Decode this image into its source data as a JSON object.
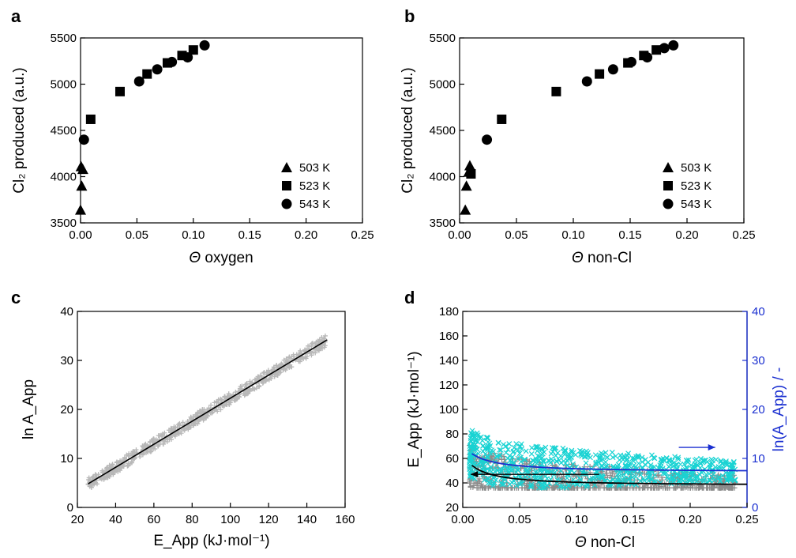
{
  "figure": {
    "background": "#ffffff"
  },
  "chart_data": [
    {
      "panel": "a",
      "type": "scatter",
      "xlabel_symbol": "Θ",
      "xlabel": "oxygen",
      "ylabel": "Cl₂ produced (a.u.)",
      "xlim": [
        0,
        0.25
      ],
      "ylim": [
        3500,
        5500
      ],
      "xticks": [
        "0.00",
        "0.05",
        "0.10",
        "0.15",
        "0.20",
        "0.25"
      ],
      "yticks": [
        "3500",
        "4000",
        "4500",
        "5000",
        "5500"
      ],
      "legend_position": "bottom-right",
      "series": [
        {
          "name": "503 K",
          "marker": "triangle",
          "x": [
            0.0,
            0.001,
            0.002,
            0.0005
          ],
          "y": [
            3640,
            3900,
            4080,
            4110
          ]
        },
        {
          "name": "523 K",
          "marker": "square",
          "x": [
            0.009,
            0.035,
            0.059,
            0.077,
            0.09,
            0.1
          ],
          "y": [
            4620,
            4920,
            5110,
            5230,
            5310,
            5370
          ]
        },
        {
          "name": "543 K",
          "marker": "circle",
          "x": [
            0.003,
            0.052,
            0.068,
            0.081,
            0.095,
            0.11
          ],
          "y": [
            4400,
            5030,
            5160,
            5240,
            5290,
            5420
          ]
        }
      ]
    },
    {
      "panel": "b",
      "type": "scatter",
      "xlabel_symbol": "Θ",
      "xlabel": "non-Cl",
      "ylabel": "Cl₂ produced (a.u.)",
      "xlim": [
        0,
        0.25
      ],
      "ylim": [
        3500,
        5500
      ],
      "xticks": [
        "0.00",
        "0.05",
        "0.10",
        "0.15",
        "0.20",
        "0.25"
      ],
      "yticks": [
        "3500",
        "4000",
        "4500",
        "5000",
        "5500"
      ],
      "legend_position": "bottom-right",
      "series": [
        {
          "name": "503 K",
          "marker": "triangle",
          "x": [
            0.005,
            0.006,
            0.008,
            0.009
          ],
          "y": [
            3640,
            3900,
            4050,
            4120
          ]
        },
        {
          "name": "523 K",
          "marker": "square",
          "x": [
            0.01,
            0.037,
            0.085,
            0.123,
            0.148,
            0.162,
            0.173
          ],
          "y": [
            4030,
            4620,
            4920,
            5110,
            5230,
            5310,
            5370
          ]
        },
        {
          "name": "543 K",
          "marker": "circle",
          "x": [
            0.024,
            0.112,
            0.135,
            0.151,
            0.165,
            0.18,
            0.188
          ],
          "y": [
            4400,
            5030,
            5160,
            5240,
            5290,
            5390,
            5420
          ]
        }
      ]
    },
    {
      "panel": "c",
      "type": "scatter",
      "xlabel": "E_App (kJ·mol⁻¹)",
      "ylabel": "ln A_App",
      "xlim": [
        20,
        170
      ],
      "ylim": [
        0,
        40
      ],
      "xticks": [
        "20",
        "40",
        "60",
        "80",
        "100",
        "120",
        "140",
        "160"
      ],
      "yticks": [
        "0",
        "10",
        "20",
        "30",
        "40"
      ],
      "marker_color": "#b8b8b8",
      "fit_line": {
        "x": [
          26,
          160
        ],
        "y": [
          4.8,
          34.2
        ],
        "color": "#000000"
      },
      "cloud": {
        "x_range": [
          26,
          160
        ],
        "band_width": 1.2
      }
    },
    {
      "panel": "d",
      "type": "scatter",
      "xlabel_symbol": "Θ",
      "xlabel": "non-Cl",
      "ylabel_left": "E_App (kJ·mol⁻¹)",
      "ylabel_right": "ln(A_App) / -",
      "xlim": [
        0,
        0.25
      ],
      "ylim_left": [
        20,
        180
      ],
      "ylim_right": [
        0,
        40
      ],
      "xticks": [
        "0.00",
        "0.05",
        "0.10",
        "0.15",
        "0.20",
        "0.25"
      ],
      "yticks_left": [
        "20",
        "40",
        "60",
        "80",
        "100",
        "120",
        "140",
        "160",
        "180"
      ],
      "yticks_right": [
        "0",
        "10",
        "20",
        "30",
        "40"
      ],
      "right_axis_color": "#1a2fd0",
      "series": [
        {
          "name": "E_App",
          "marker": "plus",
          "color": "#8c8c8c",
          "fit": {
            "a": 4.2,
            "b": 1.28,
            "min": 38
          }
        },
        {
          "name": "ln(A_App)",
          "marker": "cross",
          "color": "#19d3d3",
          "fit": {
            "a": 5.1,
            "b": 1.2,
            "min": 49
          }
        }
      ],
      "fit_colors": {
        "E_App": "#000000",
        "ln(A_App)": "#1a2fd0"
      },
      "arrows": [
        {
          "points": "left",
          "from_x": 0.12,
          "y_left": 47,
          "color": "#000000"
        },
        {
          "points": "right",
          "from_x": 0.19,
          "y_left": 69,
          "color": "#1a2fd0"
        }
      ]
    }
  ]
}
